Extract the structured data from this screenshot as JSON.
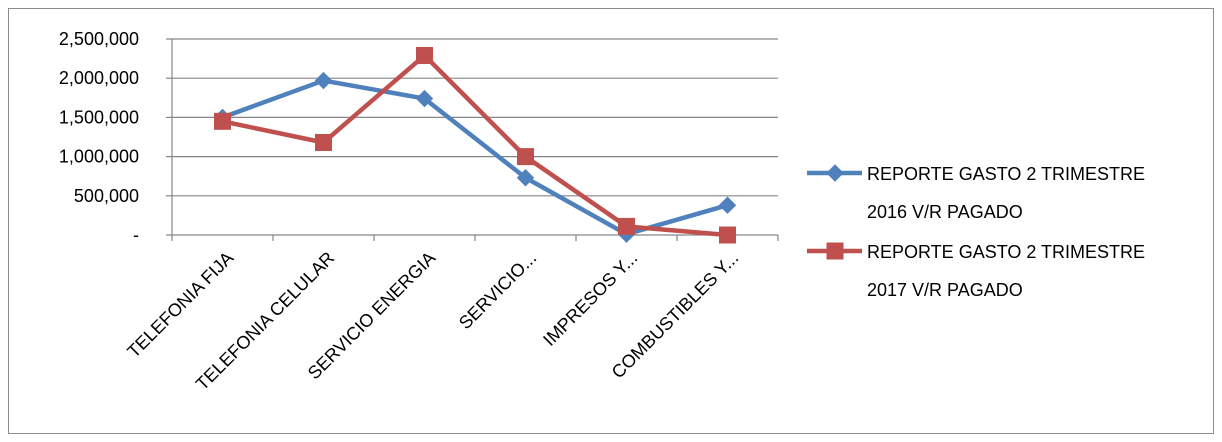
{
  "chart_data": {
    "type": "line",
    "categories": [
      "TELEFONIA FIJA",
      "TELEFONIA CELULAR",
      "SERVICIO ENERGIA",
      "SERVICIO...",
      "IMPRESOS Y...",
      "COMBUSTIBLES Y..."
    ],
    "ylim": [
      0,
      2500000
    ],
    "yticks": [
      0,
      500000,
      1000000,
      1500000,
      2000000,
      2500000
    ],
    "ytick_labels": [
      "-",
      "500,000",
      "1,000,000",
      "1,500,000",
      "2,000,000",
      "2,500,000"
    ],
    "grid": true,
    "legend_position": "right",
    "series": [
      {
        "name_lines": [
          "REPORTE GASTO 2 TRIMESTRE",
          "2016 V/R PAGADO"
        ],
        "color": "#4f81bd",
        "marker": "diamond",
        "values": [
          1500000,
          1970000,
          1740000,
          730000,
          10000,
          380000
        ]
      },
      {
        "name_lines": [
          "REPORTE GASTO 2 TRIMESTRE",
          "2017 V/R PAGADO"
        ],
        "color": "#c0504d",
        "marker": "square",
        "values": [
          1450000,
          1180000,
          2290000,
          1000000,
          110000,
          0
        ]
      }
    ]
  }
}
